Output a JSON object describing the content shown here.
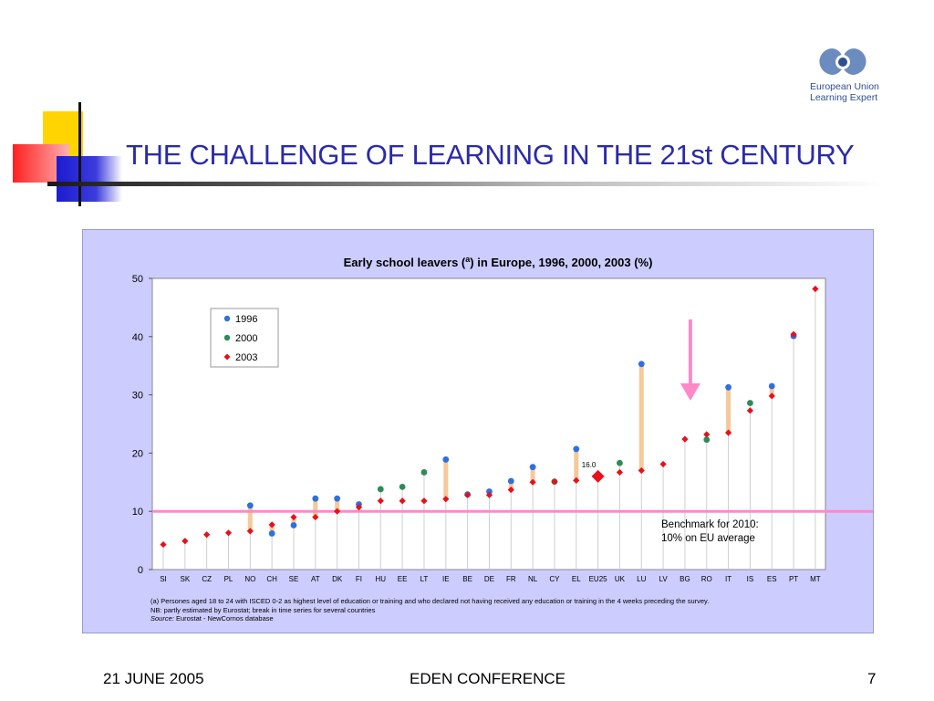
{
  "slide": {
    "title": "THE CHALLENGE OF LEARNING IN THE 21st CENTURY",
    "logo_line1": "European Union",
    "logo_line2": "Learning Expert",
    "footer_date": "21 JUNE 2005",
    "footer_event": "EDEN CONFERENCE",
    "page_number": "7"
  },
  "colors": {
    "title": "#2b2ba8",
    "panel_bg": "#ccccff",
    "series_1996": "#2f6fe0",
    "series_2000": "#2e8b57",
    "series_2003": "#e8101a",
    "range_bar": "#f5c99a",
    "benchmark_line": "#ff88c8",
    "arrow": "#ff88c8"
  },
  "chart_data": {
    "type": "scatter",
    "title_pre": "Early school leavers (",
    "title_sup": "a",
    "title_post": ")  in Europe, 1996, 2000, 2003 (%)",
    "ylim": [
      0,
      50
    ],
    "yticks": [
      "0",
      "10",
      "20",
      "30",
      "40",
      "50"
    ],
    "categories": [
      "SI",
      "SK",
      "CZ",
      "PL",
      "NO",
      "CH",
      "SE",
      "AT",
      "DK",
      "FI",
      "HU",
      "EE",
      "LT",
      "IE",
      "BE",
      "DE",
      "FR",
      "NL",
      "CY",
      "EL",
      "EU25",
      "UK",
      "LU",
      "LV",
      "BG",
      "RO",
      "IT",
      "IS",
      "ES",
      "PT",
      "MT"
    ],
    "series": [
      {
        "name": "1996",
        "values": [
          null,
          null,
          null,
          null,
          11.0,
          6.2,
          7.6,
          12.2,
          12.2,
          11.2,
          null,
          null,
          null,
          18.9,
          12.9,
          13.4,
          15.2,
          17.6,
          null,
          20.7,
          null,
          null,
          35.3,
          null,
          null,
          null,
          31.3,
          null,
          31.5,
          40.1,
          null
        ]
      },
      {
        "name": "2000",
        "values": [
          null,
          null,
          null,
          null,
          null,
          null,
          null,
          null,
          null,
          null,
          13.8,
          14.2,
          16.7,
          null,
          null,
          null,
          null,
          null,
          15.1,
          null,
          null,
          18.3,
          null,
          null,
          null,
          22.3,
          null,
          28.6,
          null,
          null,
          null
        ]
      },
      {
        "name": "2003",
        "values": [
          4.3,
          4.9,
          6.0,
          6.3,
          6.6,
          7.7,
          9.0,
          9.0,
          10.0,
          10.7,
          11.8,
          11.8,
          11.8,
          12.1,
          12.8,
          12.8,
          13.7,
          15.0,
          15.1,
          15.3,
          16.0,
          16.7,
          17.0,
          18.1,
          22.4,
          23.2,
          23.5,
          27.3,
          29.8,
          40.4,
          48.2
        ]
      }
    ],
    "highlight": {
      "category": "EU25",
      "label": "16.0"
    },
    "benchmark": {
      "value": 10,
      "label_line1": "Benchmark for 2010:",
      "label_line2": "10% on EU average"
    },
    "arrow_target": "BG",
    "legend_placement": "top-left",
    "grid": false,
    "notes": {
      "line1": "(a)  Persones aged 18 to 24 with ISCED 0-2 as highest level of education or training and who declared not having received any  education or training in the 4 weeks preceding the survey.",
      "line2": "NB: partly estimated by Eurostat; break in time series  for several countries",
      "source_label": "Source:",
      "source_text": " Eurostat - NewCornos database"
    }
  }
}
